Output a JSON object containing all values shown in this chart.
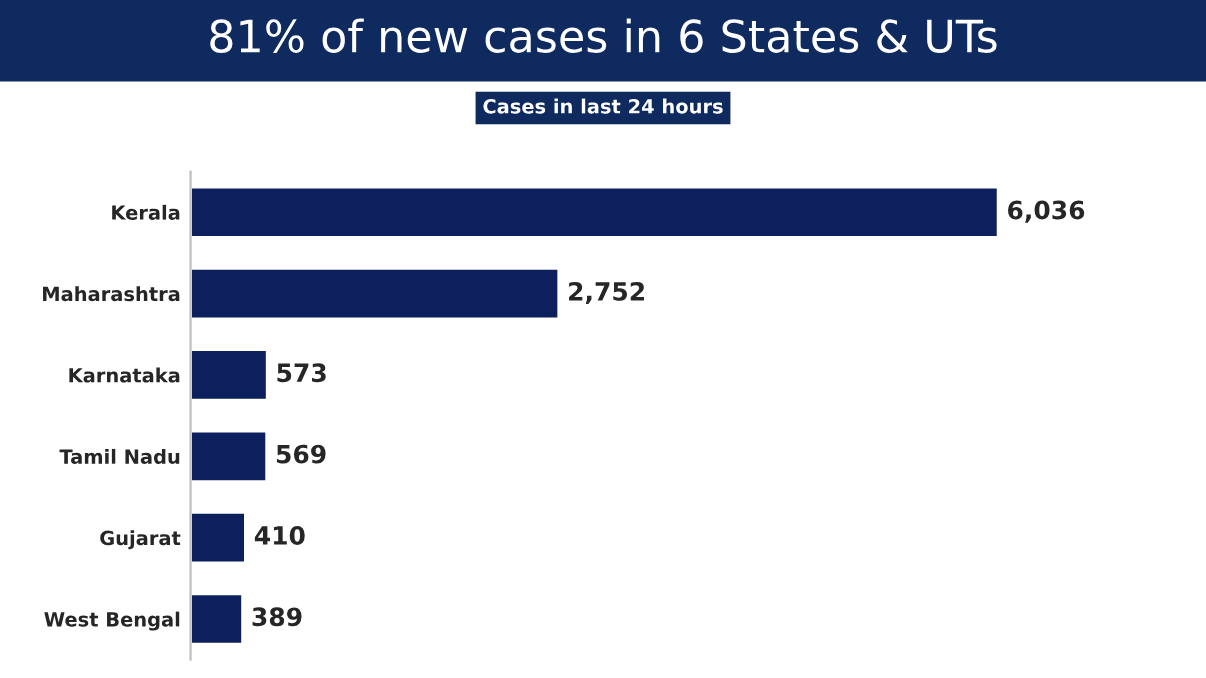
{
  "chart_data": {
    "type": "bar",
    "orientation": "horizontal",
    "title": "81% of new cases in 6 States & UTs",
    "subtitle": "Cases in last 24 hours",
    "categories": [
      "Kerala",
      "Maharashtra",
      "Karnataka",
      "Tamil Nadu",
      "Gujarat",
      "West Bengal"
    ],
    "values": [
      6036,
      2752,
      573,
      569,
      410,
      389
    ],
    "value_labels": [
      "6,036",
      "2,752",
      "573",
      "569",
      "410",
      "389"
    ],
    "color": "#0d1f5c",
    "tick_labels": "y",
    "grid": false,
    "legend": false
  }
}
